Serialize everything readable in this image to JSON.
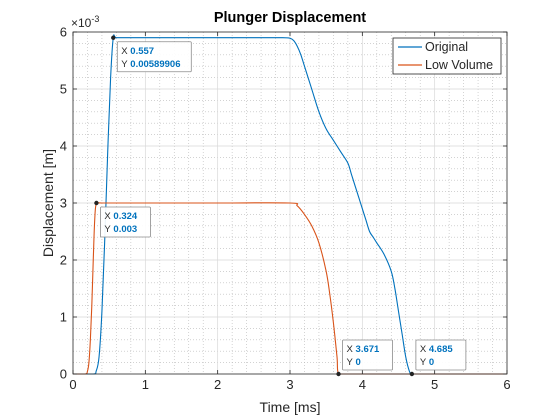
{
  "chart_data": {
    "type": "line",
    "title": "Plunger Displacement",
    "xlabel": "Time [ms]",
    "ylabel": "Displacement [m]",
    "xlim": [
      0,
      6
    ],
    "ylim": [
      0,
      0.006
    ],
    "y_multiplier_label": "×10^{-3}",
    "x_tick_labels": [
      "0",
      "1",
      "2",
      "3",
      "4",
      "5",
      "6"
    ],
    "y_tick_labels": [
      "0",
      "1",
      "2",
      "3",
      "4",
      "5",
      "6"
    ],
    "grid": true,
    "minor_grid": true,
    "legend_position": "top-right",
    "series": [
      {
        "name": "Original",
        "color": "#0072bd",
        "x": [
          0,
          0.28,
          0.32,
          0.36,
          0.4,
          0.44,
          0.48,
          0.52,
          0.557,
          0.6,
          0.8,
          1.5,
          2.5,
          2.9,
          3.0,
          3.05,
          3.1,
          3.15,
          3.2,
          3.3,
          3.4,
          3.5,
          3.6,
          3.7,
          3.8,
          3.85,
          3.9,
          3.95,
          4.0,
          4.05,
          4.1,
          4.15,
          4.2,
          4.3,
          4.4,
          4.45,
          4.5,
          4.55,
          4.6,
          4.65,
          4.685,
          4.8,
          5.5,
          6.0
        ],
        "y": [
          0,
          0,
          5e-05,
          0.0003,
          0.0011,
          0.0024,
          0.0039,
          0.0052,
          0.00589906,
          0.0059,
          0.0059,
          0.0059,
          0.0059,
          0.0059,
          0.00589,
          0.00585,
          0.00575,
          0.0056,
          0.0054,
          0.005,
          0.0046,
          0.0043,
          0.0041,
          0.0039,
          0.0037,
          0.0035,
          0.0033,
          0.0031,
          0.0029,
          0.0027,
          0.0025,
          0.0024,
          0.0023,
          0.0021,
          0.0018,
          0.0015,
          0.0011,
          0.0007,
          0.0003,
          5e-05,
          0,
          0,
          0,
          0
        ]
      },
      {
        "name": "Low Volume",
        "color": "#d95319",
        "x": [
          0,
          0.17,
          0.2,
          0.22,
          0.24,
          0.26,
          0.28,
          0.3,
          0.324,
          0.4,
          1.0,
          2.0,
          3.0,
          3.1,
          3.2,
          3.3,
          3.4,
          3.5,
          3.55,
          3.6,
          3.65,
          3.671,
          3.8,
          5.0,
          6.0
        ],
        "y": [
          0,
          0,
          5e-05,
          0.0002,
          0.0006,
          0.0012,
          0.002,
          0.0027,
          0.003,
          0.003,
          0.003,
          0.003,
          0.003,
          0.00295,
          0.0028,
          0.0026,
          0.0023,
          0.0018,
          0.0014,
          0.0009,
          0.0003,
          0,
          0,
          0,
          0
        ]
      }
    ],
    "data_tips": [
      {
        "x": 0.557,
        "y": 0.00589906,
        "x_text": "0.557",
        "y_text": "0.00589906",
        "anchor": "right-below"
      },
      {
        "x": 0.324,
        "y": 0.003,
        "x_text": "0.324",
        "y_text": "0.003",
        "anchor": "right-below"
      },
      {
        "x": 3.671,
        "y": 0,
        "x_text": "3.671",
        "y_text": "0",
        "anchor": "right-above"
      },
      {
        "x": 4.685,
        "y": 0,
        "x_text": "4.685",
        "y_text": "0",
        "anchor": "right-above"
      }
    ],
    "data_tip_key_x": "X",
    "data_tip_key_y": "Y"
  }
}
